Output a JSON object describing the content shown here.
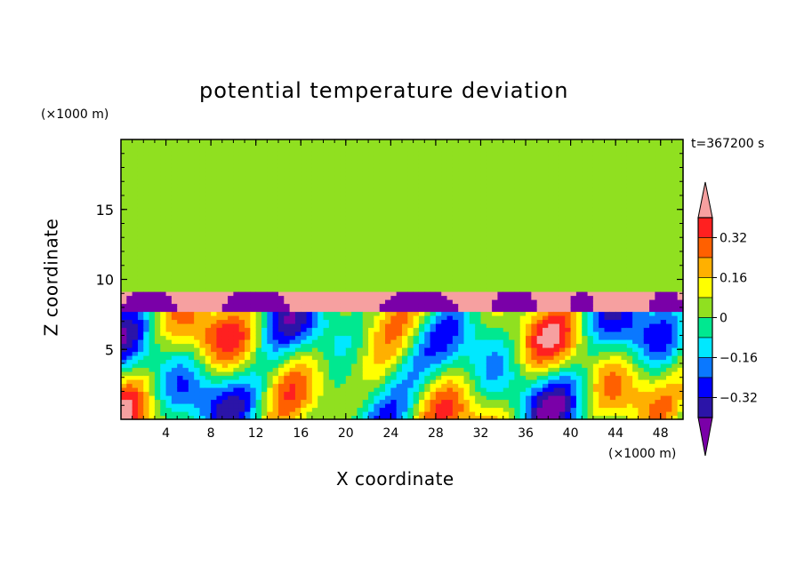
{
  "chart_data": {
    "type": "heatmap",
    "title": "potential temperature deviation",
    "time_label": "t=367200 s",
    "xlabel": "X coordinate",
    "ylabel": "Z coordinate",
    "x_unit": "(×1000 m)",
    "y_unit": "(×1000 m)",
    "xlim": [
      0,
      50
    ],
    "ylim": [
      0,
      20
    ],
    "x_ticks": [
      4,
      8,
      12,
      16,
      20,
      24,
      28,
      32,
      36,
      40,
      44,
      48
    ],
    "y_ticks": [
      5,
      10,
      15
    ],
    "colorbar": {
      "tick_labels": [
        "0.32",
        "0.16",
        "0",
        "−0.16",
        "−0.32"
      ],
      "levels": [
        -0.4,
        -0.32,
        -0.24,
        -0.16,
        -0.08,
        0,
        0.08,
        0.16,
        0.24,
        0.32,
        0.4
      ],
      "colors": [
        "#7a00a8",
        "#2b14a8",
        "#0000ff",
        "#0a78ff",
        "#00e8ff",
        "#00e890",
        "#90e020",
        "#ffff00",
        "#ffb000",
        "#ff6000",
        "#ff2020",
        "#f6a0a0"
      ]
    },
    "regions": {
      "upper_layer": {
        "z_range": [
          9,
          20
        ],
        "dominant_values": [
          0,
          0.08
        ]
      },
      "inversion_layer": {
        "z_range": [
          7.6,
          9
        ],
        "dominant_value": 0.4,
        "cold_domes_value": -0.4,
        "cold_domes_x": [
          [
            0,
            5
          ],
          [
            9,
            15
          ],
          [
            23,
            30
          ],
          [
            33,
            37
          ],
          [
            40,
            42
          ],
          [
            47,
            50
          ]
        ]
      },
      "convective_layer": {
        "z_range": [
          0,
          7.6
        ],
        "value_range": [
          -0.4,
          0.4
        ]
      }
    }
  },
  "colors": {
    "frame": "#000000",
    "background": "#ffffff"
  }
}
